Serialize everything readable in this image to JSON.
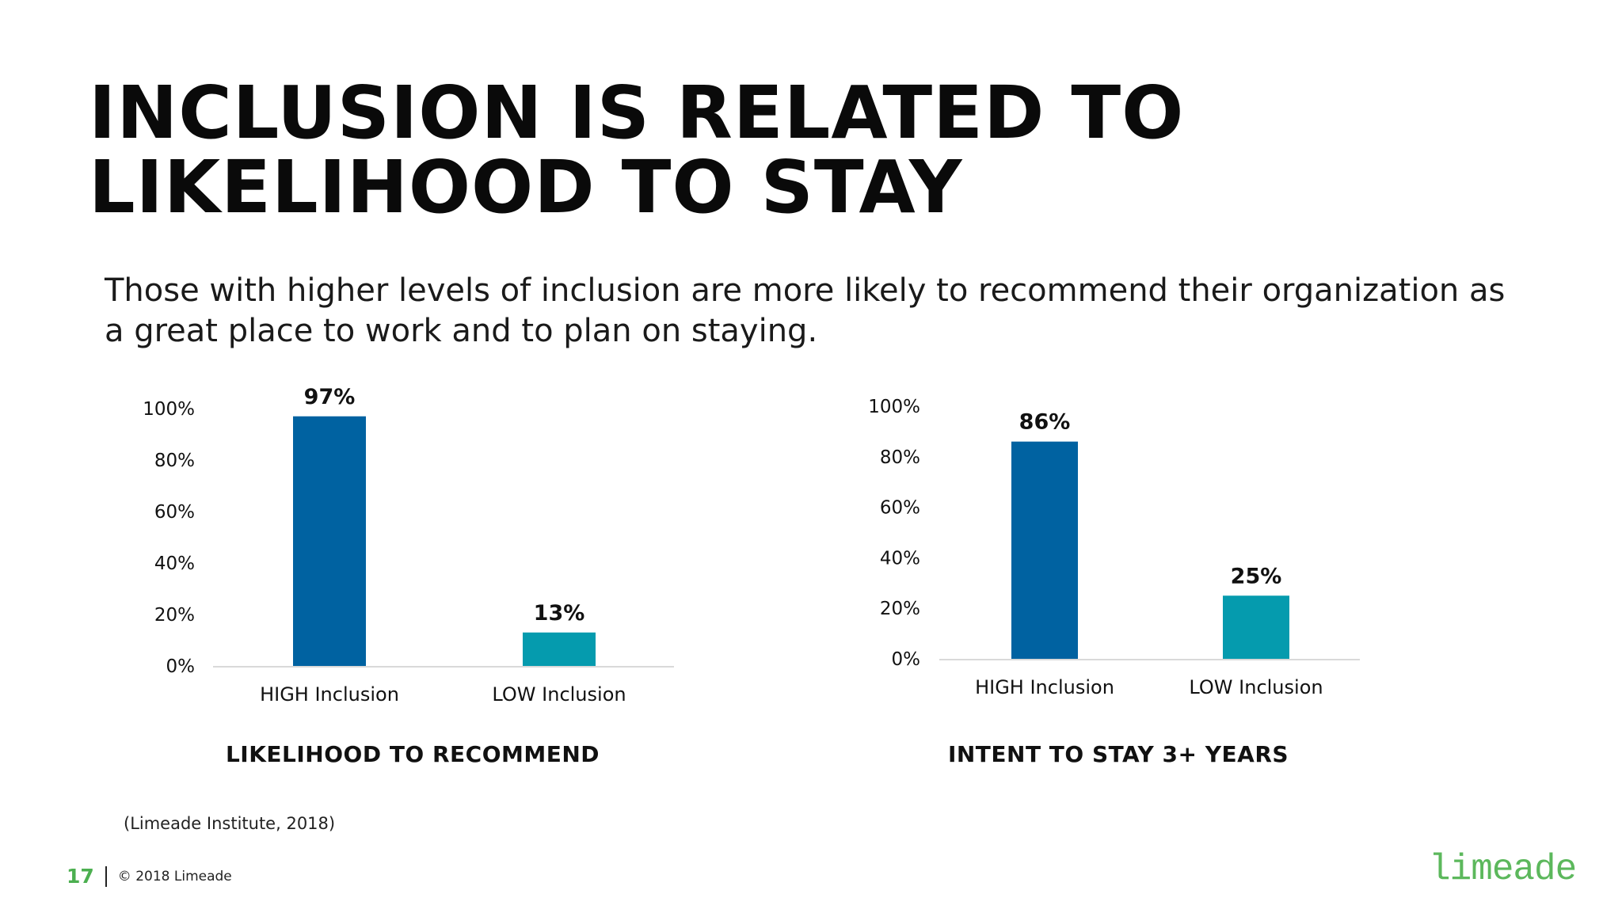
{
  "slide": {
    "title_line1": "INCLUSION IS RELATED TO",
    "title_line2": "LIKELIHOOD TO STAY",
    "subtitle": "Those with higher levels of inclusion are more likely to recommend their organization as a great place to work and to plan on staying.",
    "source": "(Limeade Institute, 2018)",
    "page_number": "17",
    "copyright": "© 2018 Limeade",
    "logo": "limeade"
  },
  "chart_data": [
    {
      "type": "bar",
      "title": "LIKELIHOOD TO RECOMMEND",
      "categories": [
        "HIGH Inclusion",
        "LOW Inclusion"
      ],
      "values": [
        97,
        13
      ],
      "data_labels": [
        "97%",
        "13%"
      ],
      "colors": [
        "#0062a1",
        "#059bae"
      ],
      "ylim": [
        0,
        100
      ],
      "yticks": [
        "0%",
        "20%",
        "40%",
        "60%",
        "80%",
        "100%"
      ],
      "grid": false
    },
    {
      "type": "bar",
      "title": "INTENT TO STAY 3+ YEARS",
      "categories": [
        "HIGH Inclusion",
        "LOW Inclusion"
      ],
      "values": [
        86,
        25
      ],
      "data_labels": [
        "86%",
        "25%"
      ],
      "colors": [
        "#0062a1",
        "#059bae"
      ],
      "ylim": [
        0,
        100
      ],
      "yticks": [
        "0%",
        "20%",
        "40%",
        "60%",
        "80%",
        "100%"
      ],
      "grid": false
    }
  ]
}
